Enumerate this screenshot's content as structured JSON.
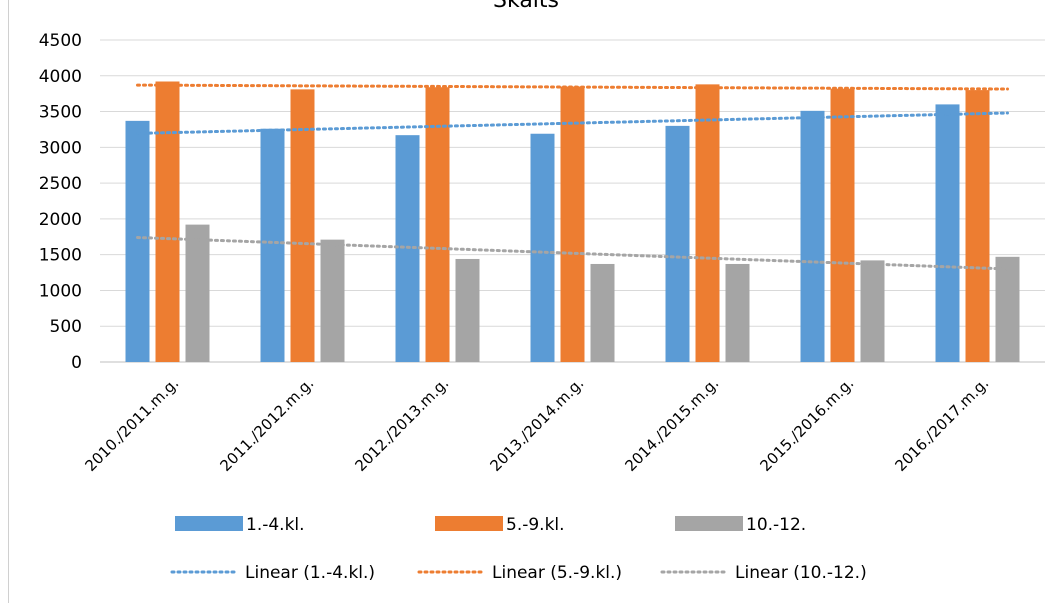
{
  "title": "Skaits",
  "chart_data": {
    "type": "bar",
    "title": "Skaits",
    "categories": [
      "2010./2011.m.g.",
      "2011./2012.m.g.",
      "2012./2013.m.g.",
      "2013./2014.m.g.",
      "2014./2015.m.g.",
      "2015./2016.m.g.",
      "2016./2017.m.g."
    ],
    "series": [
      {
        "name": "1.-4.kl.",
        "color": "#5b9bd5",
        "values": [
          3370,
          3260,
          3170,
          3190,
          3300,
          3510,
          3600
        ]
      },
      {
        "name": "5.-9.kl.",
        "color": "#ed7d31",
        "values": [
          3920,
          3810,
          3840,
          3850,
          3880,
          3820,
          3800
        ]
      },
      {
        "name": "10.-12.",
        "color": "#a5a5a5",
        "values": [
          1920,
          1710,
          1440,
          1370,
          1370,
          1420,
          1470
        ]
      }
    ],
    "trendlines": [
      {
        "name": "Linear (1.-4.kl.)",
        "color": "#5b9bd5",
        "start": 3195,
        "end": 3480
      },
      {
        "name": "Linear (5.-9.kl.)",
        "color": "#ed7d31",
        "start": 3870,
        "end": 3815
      },
      {
        "name": "Linear (10.-12.)",
        "color": "#a5a5a5",
        "start": 1740,
        "end": 1300
      }
    ],
    "yticks": [
      "0",
      "500",
      "1000",
      "1500",
      "2000",
      "2500",
      "3000",
      "3500",
      "4000",
      "4500"
    ],
    "ylim": [
      0,
      4500
    ],
    "grid": true,
    "legend": "bottom",
    "xlabel": "",
    "ylabel": ""
  }
}
